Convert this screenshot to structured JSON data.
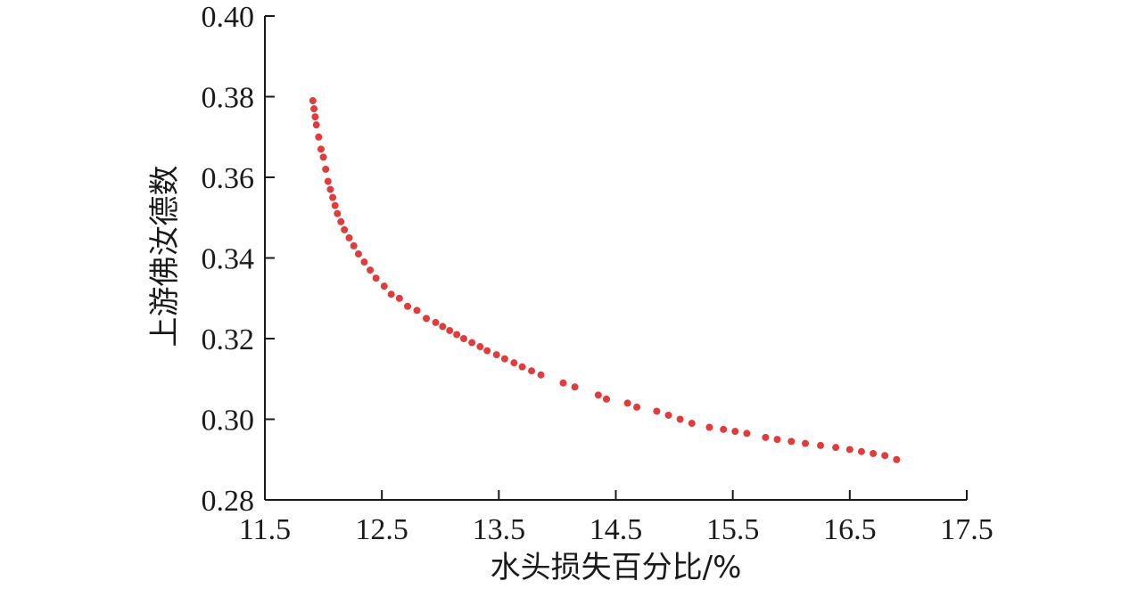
{
  "chart_data": {
    "type": "scatter",
    "title": "",
    "xlabel": "水头损失百分比/%",
    "ylabel": "上游佛汝德数",
    "xlim": [
      11.5,
      17.5
    ],
    "ylim": [
      0.28,
      0.4
    ],
    "x_ticks": [
      "11.5",
      "12.5",
      "13.5",
      "14.5",
      "15.5",
      "16.5",
      "17.5"
    ],
    "y_ticks": [
      "0.28",
      "0.30",
      "0.32",
      "0.34",
      "0.36",
      "0.38",
      "0.40"
    ],
    "grid": false,
    "legend": "none",
    "marker_color": "#e03c3c",
    "axis_color": "#1a1a1a",
    "series": [
      {
        "x": [
          11.91,
          11.92,
          11.93,
          11.94,
          11.96,
          11.98,
          12.0,
          12.02,
          12.04,
          12.06,
          12.08,
          12.1,
          12.12,
          12.15,
          12.18,
          12.22,
          12.26,
          12.3,
          12.35,
          12.4,
          12.45,
          12.52,
          12.58,
          12.65,
          12.72,
          12.8,
          12.88,
          12.96,
          13.02,
          13.08,
          13.14,
          13.2,
          13.27,
          13.34,
          13.4,
          13.48,
          13.55,
          13.63,
          13.7,
          13.78,
          13.86,
          14.05,
          14.15,
          14.35,
          14.42,
          14.6,
          14.68,
          14.85,
          14.95,
          15.05,
          15.15,
          15.3,
          15.42,
          15.52,
          15.62,
          15.78,
          15.88,
          16.0,
          16.12,
          16.25,
          16.38,
          16.5,
          16.6,
          16.7,
          16.8,
          16.9
        ],
        "y": [
          0.379,
          0.377,
          0.375,
          0.373,
          0.37,
          0.367,
          0.365,
          0.362,
          0.359,
          0.357,
          0.355,
          0.353,
          0.351,
          0.349,
          0.347,
          0.345,
          0.343,
          0.341,
          0.339,
          0.337,
          0.335,
          0.333,
          0.331,
          0.33,
          0.328,
          0.327,
          0.325,
          0.324,
          0.323,
          0.322,
          0.321,
          0.32,
          0.319,
          0.318,
          0.317,
          0.316,
          0.315,
          0.314,
          0.313,
          0.312,
          0.311,
          0.309,
          0.308,
          0.306,
          0.305,
          0.304,
          0.303,
          0.302,
          0.301,
          0.3,
          0.299,
          0.298,
          0.2975,
          0.297,
          0.2965,
          0.2955,
          0.295,
          0.2945,
          0.294,
          0.2935,
          0.293,
          0.2925,
          0.292,
          0.2915,
          0.291,
          0.29
        ]
      }
    ]
  }
}
